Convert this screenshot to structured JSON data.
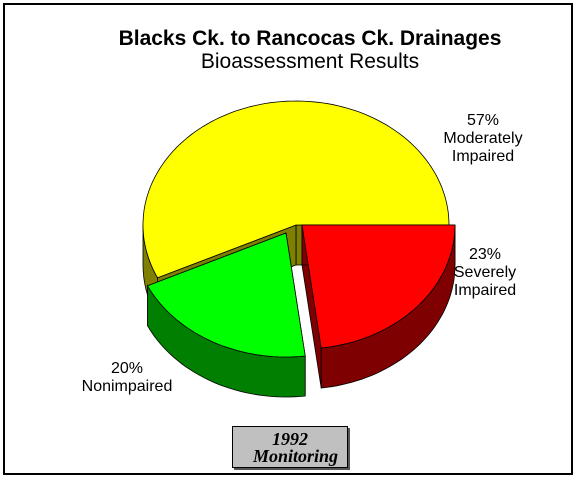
{
  "chart_data": {
    "type": "pie",
    "title": "Blacks Ck. to Rancocas Ck. Drainages",
    "subtitle": "Bioassessment Results",
    "categories": [
      "Moderately Impaired",
      "Nonimpaired",
      "Severely Impaired"
    ],
    "values": [
      57,
      20,
      23
    ],
    "value_labels": [
      "57%",
      "20%",
      "23%"
    ],
    "colors": [
      "#ffff00",
      "#00ff00",
      "#ff0000"
    ],
    "annotation": "1992 Monitoring"
  }
}
